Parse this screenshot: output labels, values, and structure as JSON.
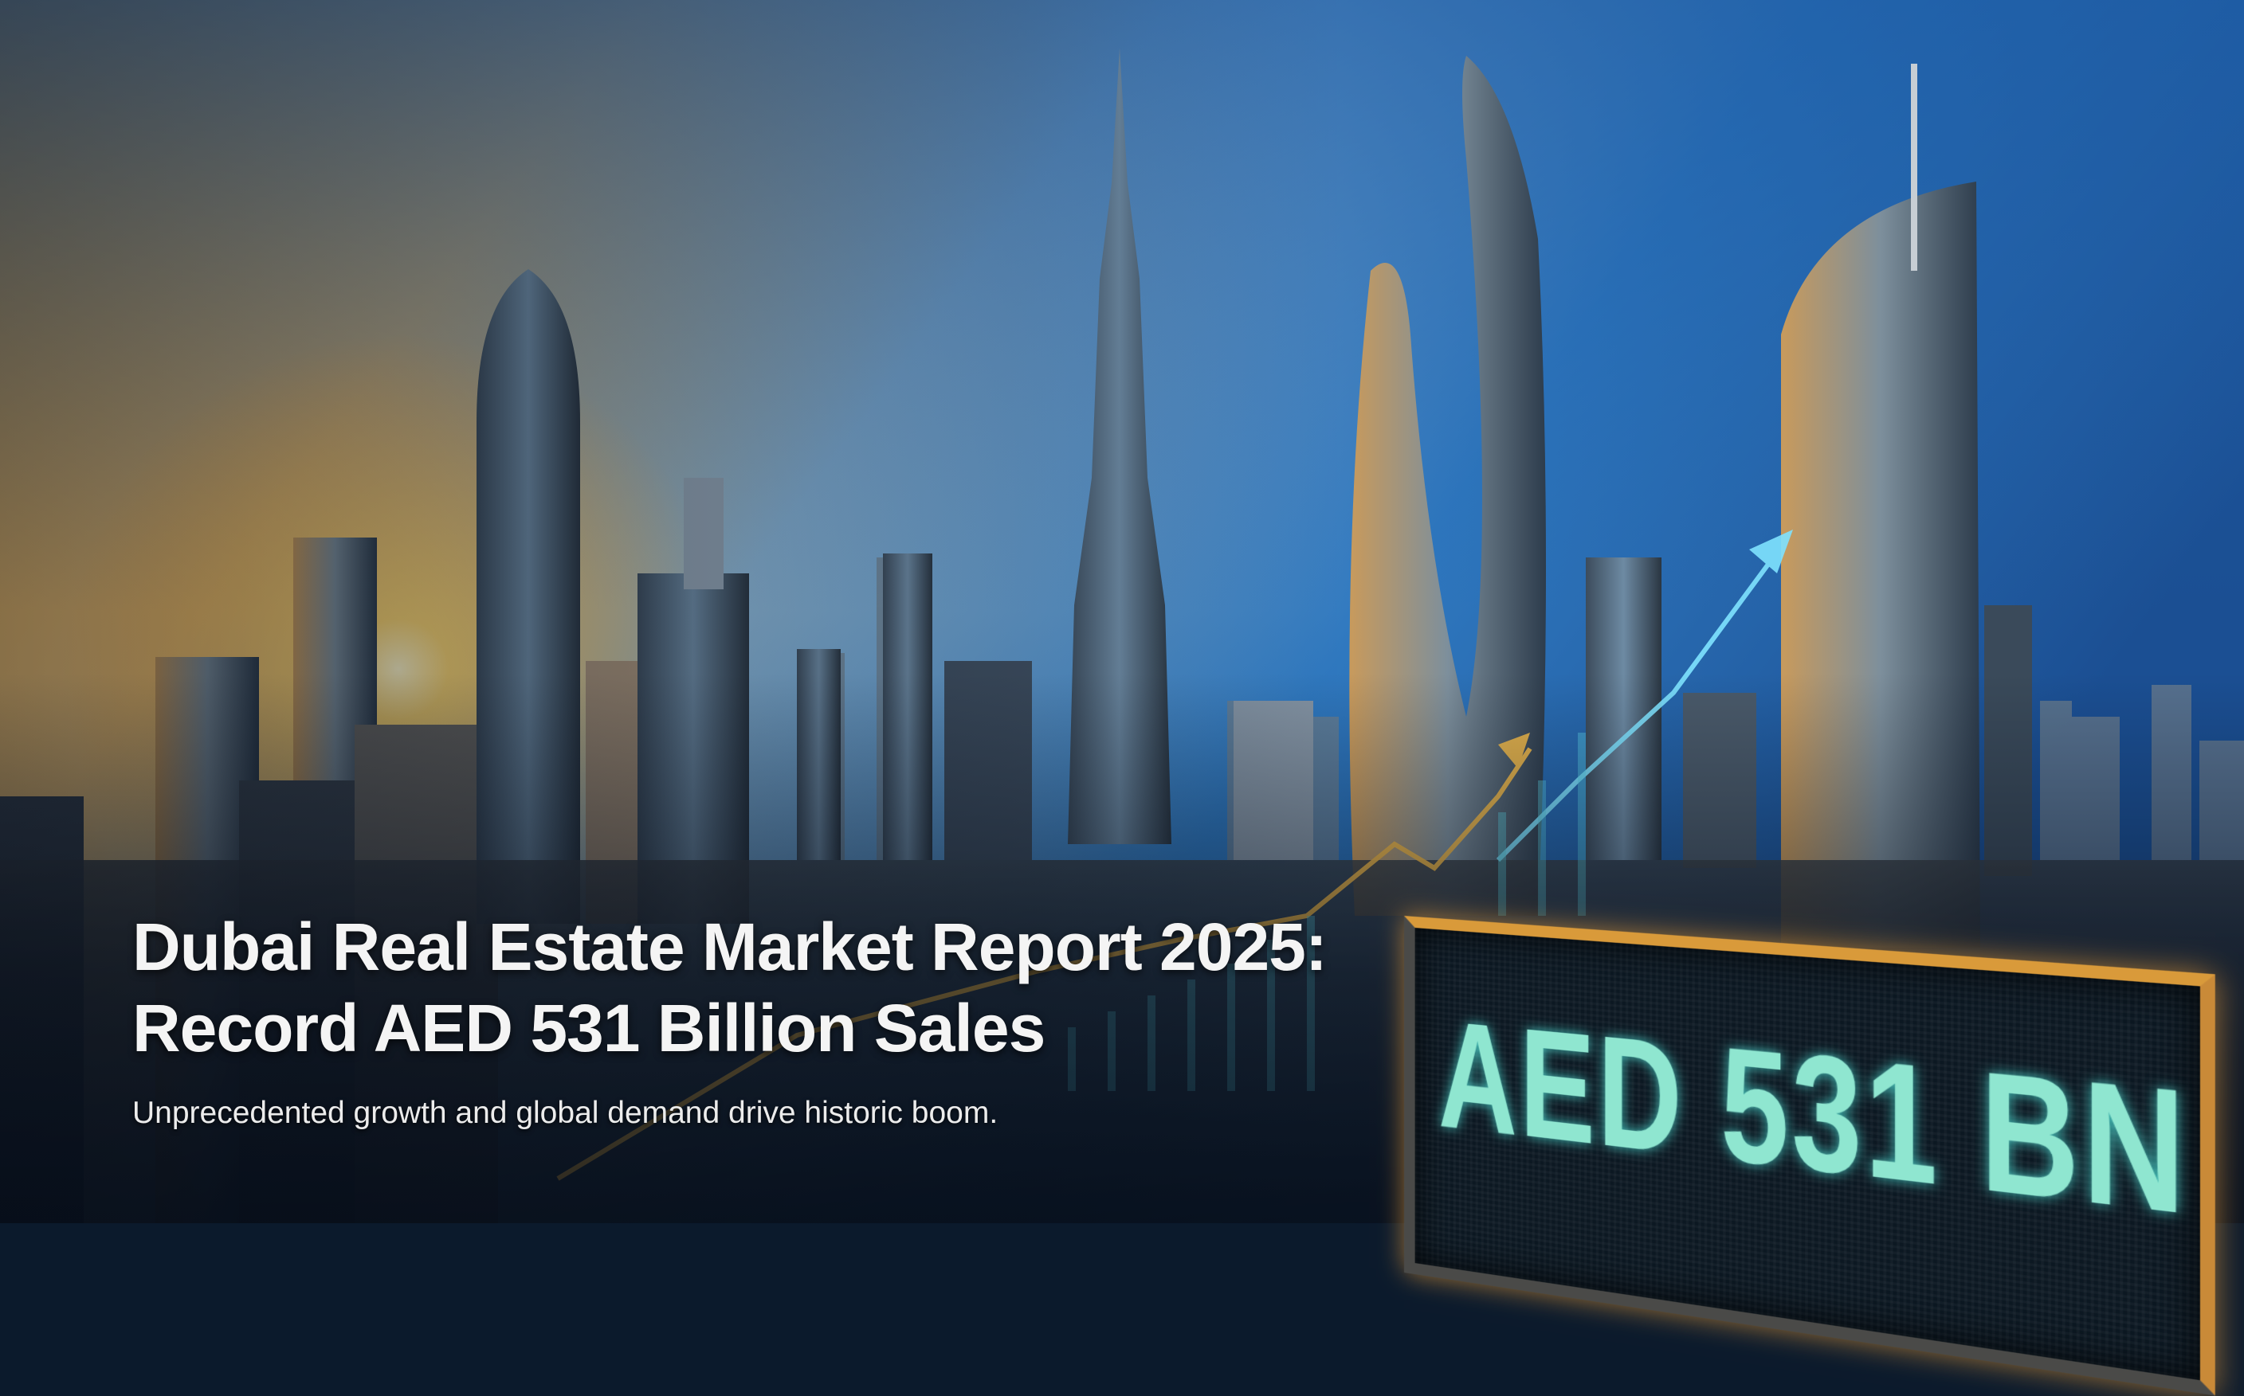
{
  "hero": {
    "title_line1": "Dubai Real Estate Market Report 2025:",
    "title_line2": "Record AED 531 Billion Sales",
    "subtitle": "Unprecedented growth and global demand drive historic boom."
  },
  "sign": {
    "text": "AED 531 BN"
  },
  "colors": {
    "sky_top": "#1d5fa8",
    "sunset": "#f6a531",
    "growth_line": "#f0b94a",
    "arrow": "#7fe3ff",
    "sign_text": "#8fe6d0"
  }
}
